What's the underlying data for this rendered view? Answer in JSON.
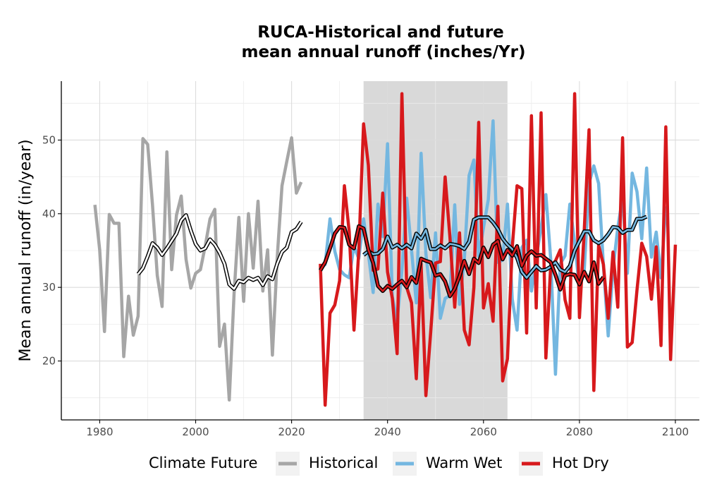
{
  "chart_data": {
    "type": "line",
    "title": "RUCA-Historical and future",
    "subtitle": "mean annual runoff (inches/Yr)",
    "xlabel": "",
    "ylabel": "Mean annual runoff (in/year)",
    "xlim": [
      1972,
      2105
    ],
    "ylim": [
      12,
      58
    ],
    "x_ticks": [
      1980,
      2000,
      2020,
      2040,
      2060,
      2080,
      2100
    ],
    "y_ticks": [
      20,
      30,
      40,
      50
    ],
    "grid": true,
    "shaded_period": [
      2035,
      2065
    ],
    "legend": {
      "title": "Climate Future",
      "position": "bottom",
      "items": [
        "Historical",
        "Warm Wet",
        "Hot Dry"
      ]
    },
    "series": [
      {
        "name": "Historical",
        "color": "#a6a6a6",
        "x_start": 1979,
        "values": [
          41.2,
          35.1,
          24.0,
          39.9,
          38.7,
          38.7,
          20.6,
          28.8,
          23.5,
          26.1,
          50.2,
          49.4,
          41.2,
          31.6,
          27.4,
          48.4,
          32.4,
          39.8,
          42.4,
          33.8,
          29.9,
          31.9,
          32.4,
          35.6,
          39.3,
          40.6,
          22.0,
          25.0,
          14.7,
          29.1,
          39.5,
          28.1,
          40.0,
          32.6,
          41.7,
          29.5,
          35.1,
          20.8,
          34.0,
          43.8,
          47.1,
          50.3,
          42.8,
          44.3
        ]
      },
      {
        "name": "Historical smoothed",
        "color": "#000000",
        "x_start": 1988,
        "values": [
          31.8,
          32.6,
          34.2,
          36.0,
          35.4,
          34.4,
          35.3,
          36.3,
          37.3,
          39.1,
          39.8,
          37.7,
          35.9,
          35.0,
          35.3,
          36.5,
          35.8,
          34.7,
          33.2,
          30.4,
          29.8,
          30.9,
          30.7,
          31.3,
          31.0,
          31.3,
          30.3,
          31.5,
          31.1,
          33.2,
          34.8,
          35.4,
          37.5,
          37.9,
          38.9
        ]
      },
      {
        "name": "Warm Wet",
        "color": "#74b7e0",
        "x_start": 2026,
        "values": [
          32.6,
          33.1,
          39.3,
          34.9,
          32.4,
          31.7,
          31.3,
          35.6,
          33.9,
          39.3,
          34.6,
          29.3,
          41.3,
          36.9,
          49.5,
          28.7,
          25.5,
          32.3,
          42.1,
          35.1,
          27.9,
          48.2,
          34.6,
          28.6,
          37.4,
          25.8,
          28.5,
          28.9,
          41.2,
          27.7,
          33.8,
          45.2,
          47.3,
          34.2,
          38.1,
          41.9,
          52.6,
          33.4,
          33.7,
          41.3,
          28.4,
          24.2,
          35.4,
          36.4,
          29.5,
          34.1,
          38.1,
          42.6,
          33.9,
          18.2,
          33.2,
          34.3,
          41.3,
          36.1,
          29.8,
          32.3,
          44.1,
          46.5,
          44.1,
          33.0,
          23.4,
          32.5,
          38.1,
          42.2,
          31.9,
          45.5,
          43.0,
          36.6,
          46.2,
          34.1,
          37.5,
          31.3,
          41.0
        ]
      },
      {
        "name": "Warm Wet smoothed",
        "color": "#000000",
        "x_start": 2035,
        "values": [
          34.4,
          34.9,
          34.5,
          34.6,
          35.2,
          36.9,
          35.4,
          35.8,
          35.3,
          35.8,
          35.3,
          37.3,
          36.6,
          37.8,
          35.2,
          35.2,
          35.7,
          35.3,
          35.9,
          35.8,
          35.6,
          35.2,
          36.2,
          39.2,
          39.5,
          39.5,
          39.5,
          38.8,
          37.9,
          36.6,
          35.8,
          35.2,
          34.0,
          32.1,
          31.3,
          32.1,
          32.9,
          32.3,
          32.4,
          32.8,
          33.4,
          32.4,
          32.1,
          32.9,
          35.0,
          36.3,
          37.6,
          37.6,
          36.4,
          36.0,
          36.4,
          37.2,
          38.2,
          38.1,
          37.4,
          37.8,
          37.8,
          39.3,
          39.3,
          39.6
        ]
      },
      {
        "name": "Hot Dry",
        "color": "#d7191c",
        "x_start": 2026,
        "values": [
          33.2,
          14.0,
          26.5,
          27.6,
          30.9,
          43.8,
          37.6,
          24.2,
          34.9,
          52.2,
          46.6,
          32.3,
          32.5,
          42.8,
          32.1,
          28.5,
          21.0,
          56.3,
          30.0,
          27.9,
          17.6,
          33.2,
          15.3,
          23.9,
          33.3,
          33.5,
          45.0,
          36.8,
          27.3,
          37.4,
          24.2,
          22.2,
          30.0,
          52.4,
          27.2,
          30.5,
          25.4,
          41.0,
          17.3,
          20.3,
          35.4,
          43.8,
          43.4,
          23.8,
          53.3,
          27.2,
          53.7,
          20.4,
          32.9,
          33.6,
          35.1,
          28.3,
          25.8,
          56.3,
          25.9,
          37.7,
          51.4,
          16.0,
          35.7,
          33.1,
          25.8,
          34.8,
          27.3,
          50.3,
          21.9,
          22.5,
          29.6,
          36.0,
          34.2,
          28.4,
          35.5,
          22.1,
          51.8,
          20.2,
          35.8
        ]
      },
      {
        "name": "Hot Dry smoothed",
        "color": "#000000",
        "x_start": 2026,
        "values": [
          32.3,
          33.4,
          35.3,
          37.3,
          38.2,
          38.1,
          35.8,
          35.3,
          38.3,
          38.0,
          35.1,
          33.3,
          30.2,
          29.5,
          30.2,
          29.8,
          30.4,
          30.9,
          30.0,
          31.4,
          30.6,
          33.9,
          33.6,
          33.4,
          31.6,
          31.8,
          30.8,
          28.8,
          29.8,
          31.5,
          33.6,
          31.8,
          33.9,
          33.3,
          35.4,
          34.1,
          35.8,
          36.3,
          33.8,
          35.1,
          34.3,
          35.6,
          32.9,
          34.3,
          34.9,
          34.3,
          34.4,
          33.9,
          33.4,
          31.7,
          29.7,
          31.6,
          31.8,
          31.7,
          30.4,
          32.1,
          30.8,
          33.4,
          30.5,
          31.4
        ]
      }
    ]
  }
}
